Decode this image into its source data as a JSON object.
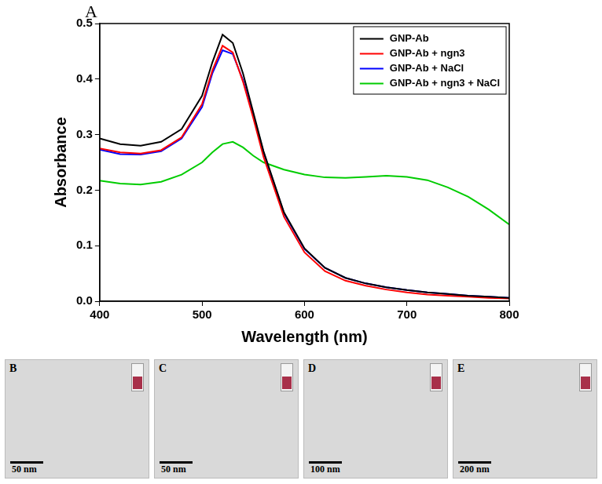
{
  "chart_data": {
    "type": "line",
    "panel": "A",
    "x_label": "Wavelength (nm)",
    "y_label": "Absorbance",
    "x": [
      400,
      420,
      440,
      460,
      480,
      500,
      510,
      520,
      530,
      540,
      550,
      560,
      580,
      600,
      620,
      640,
      660,
      680,
      700,
      720,
      740,
      760,
      780,
      800
    ],
    "series": [
      {
        "name": "GNP-Ab",
        "color": "#000000",
        "values": [
          0.293,
          0.283,
          0.28,
          0.287,
          0.31,
          0.37,
          0.43,
          0.48,
          0.465,
          0.41,
          0.34,
          0.27,
          0.16,
          0.095,
          0.06,
          0.042,
          0.032,
          0.025,
          0.02,
          0.016,
          0.013,
          0.01,
          0.008,
          0.006
        ]
      },
      {
        "name": "GNP-Ab + ngn3",
        "color": "#ff0000",
        "values": [
          0.275,
          0.268,
          0.266,
          0.272,
          0.295,
          0.355,
          0.415,
          0.46,
          0.448,
          0.395,
          0.33,
          0.26,
          0.152,
          0.088,
          0.054,
          0.037,
          0.028,
          0.021,
          0.016,
          0.012,
          0.01,
          0.008,
          0.006,
          0.005
        ]
      },
      {
        "name": "GNP-Ab + NaCl",
        "color": "#0000ff",
        "values": [
          0.273,
          0.265,
          0.264,
          0.27,
          0.293,
          0.35,
          0.41,
          0.452,
          0.445,
          0.398,
          0.335,
          0.268,
          0.158,
          0.094,
          0.06,
          0.042,
          0.032,
          0.025,
          0.02,
          0.016,
          0.013,
          0.01,
          0.008,
          0.006
        ]
      },
      {
        "name": "GNP-Ab + ngn3 + NaCl",
        "color": "#00cc00",
        "values": [
          0.217,
          0.212,
          0.21,
          0.215,
          0.228,
          0.25,
          0.268,
          0.283,
          0.287,
          0.277,
          0.262,
          0.25,
          0.237,
          0.228,
          0.223,
          0.222,
          0.224,
          0.226,
          0.224,
          0.218,
          0.205,
          0.188,
          0.165,
          0.138
        ]
      }
    ],
    "xlim": [
      400,
      800
    ],
    "xticks": [
      400,
      500,
      600,
      700,
      800
    ],
    "ylim": [
      0,
      0.5
    ],
    "yticks": [
      {
        "value": 0,
        "label": "0.0"
      },
      0.1,
      0.2,
      0.3,
      0.4,
      0.5
    ],
    "grid": false,
    "legend": "upper right"
  },
  "panels": [
    {
      "label": "B",
      "scale_bar": "50 nm"
    },
    {
      "label": "C",
      "scale_bar": "50 nm"
    },
    {
      "label": "D",
      "scale_bar": "100 nm"
    },
    {
      "label": "E",
      "scale_bar": "200 nm"
    }
  ]
}
